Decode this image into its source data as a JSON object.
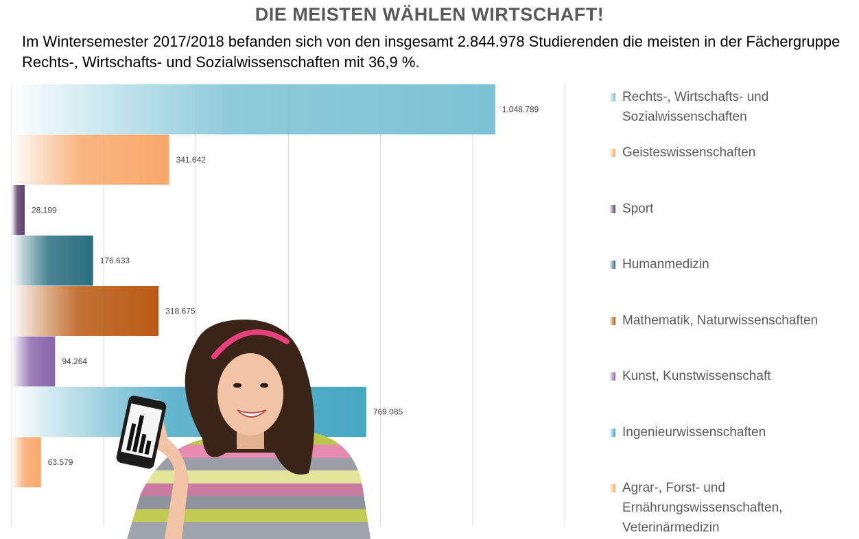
{
  "chart_data": {
    "type": "bar",
    "orientation": "horizontal",
    "title": "DIE MEISTEN WÄHLEN WIRTSCHAFT!",
    "subtitle": "Im Wintersemester 2017/2018 befanden sich von den insgesamt 2.844.978 Studierenden die meisten in der Fächergruppe Rechts-, Wirtschafts- und Sozialwissenschaften mit 36,9 %.",
    "xlim": [
      0,
      1250000
    ],
    "grid": true,
    "legend_position": "right",
    "categories": [
      "Rechts-, Wirtschafts- und Sozialwissenschaften",
      "Geisteswissenschaften",
      "Sport",
      "Humanmedizin",
      "Mathematik, Naturwissenschaften",
      "Kunst, Kunstwissenschaft",
      "Ingenieurwissenschaften",
      "Agrar-, Forst- und Ernährungswissenschaften, Veterinärmedizin"
    ],
    "legend_labels": [
      "Rechts-, Wirtschafts- und\nSozialwissenschaften",
      "Geisteswissenschaften",
      "Sport",
      "Humanmedizin",
      "Mathematik, Naturwissenschaften",
      "Kunst, Kunstwissenschaft",
      "Ingenieurwissenschaften",
      "Agrar-, Forst- und\nErnährungswissenschaften,\nVeterinärmedizin"
    ],
    "values": [
      1048789,
      341642,
      28199,
      176633,
      318675,
      94264,
      769085,
      63579
    ],
    "value_labels": [
      "1.048.789",
      "341.642",
      "28.199",
      "176.633",
      "318.675",
      "94.264",
      "769.085",
      "63.579"
    ],
    "colors": [
      "#7cc2d4",
      "#f7a86a",
      "#5e3f6b",
      "#2a6f80",
      "#b85a14",
      "#8a66aa",
      "#47a8c3",
      "#f7a86a"
    ]
  },
  "illustration": {
    "subject": "girl-holding-smartphone-with-bar-chart",
    "colors": {
      "hair": "#3a2317",
      "skin": "#f0c4a4",
      "headband": "#e8407a",
      "phone": "#1b1b1b"
    }
  }
}
